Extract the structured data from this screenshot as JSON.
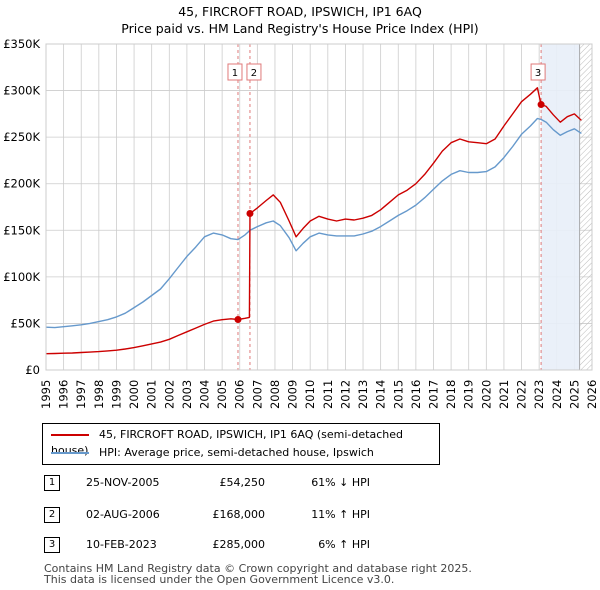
{
  "title_line1": "45, FIRCROFT ROAD, IPSWICH, IP1 6AQ",
  "title_line2": "Price paid vs. HM Land Registry's House Price Index (HPI)",
  "colors": {
    "red": "#cc0000",
    "blue": "#6699cc",
    "shade": "#e8eef8",
    "grid": "#cccccc",
    "vline": "#e07a7a"
  },
  "legend": {
    "red_label": "45, FIRCROFT ROAD, IPSWICH, IP1 6AQ (semi-detached house)",
    "blue_label": "HPI: Average price, semi-detached house, Ipswich"
  },
  "transactions": [
    {
      "num": "1",
      "date": "25-NOV-2005",
      "price": "£54,250",
      "hpi": "61% ↓ HPI"
    },
    {
      "num": "2",
      "date": "02-AUG-2006",
      "price": "£168,000",
      "hpi": "11% ↑ HPI"
    },
    {
      "num": "3",
      "date": "10-FEB-2023",
      "price": "£285,000",
      "hpi": "6% ↑ HPI"
    }
  ],
  "footer_line1": "Contains HM Land Registry data © Crown copyright and database right 2025.",
  "footer_line2": "This data is licensed under the Open Government Licence v3.0.",
  "chart_data": {
    "type": "line",
    "title": "Price paid vs. HM Land Registry's House Price Index (HPI)",
    "xlim": [
      1995,
      2026
    ],
    "ylim": [
      0,
      350000
    ],
    "x_ticks": [
      1995,
      1996,
      1997,
      1998,
      1999,
      2000,
      2001,
      2002,
      2003,
      2004,
      2005,
      2006,
      2007,
      2008,
      2009,
      2010,
      2011,
      2012,
      2013,
      2014,
      2015,
      2016,
      2017,
      2018,
      2019,
      2020,
      2021,
      2022,
      2023,
      2024,
      2025,
      2026
    ],
    "y_ticks": [
      {
        "value": 0,
        "label": "£0"
      },
      {
        "value": 50000,
        "label": "£50K"
      },
      {
        "value": 100000,
        "label": "£100K"
      },
      {
        "value": 150000,
        "label": "£150K"
      },
      {
        "value": 200000,
        "label": "£200K"
      },
      {
        "value": 250000,
        "label": "£250K"
      },
      {
        "value": 300000,
        "label": "£300K"
      },
      {
        "value": 350000,
        "label": "£350K"
      }
    ],
    "grid": true,
    "future_shade_from": 2025.0,
    "hatch_from": 2025.3,
    "markers": [
      {
        "label": "1",
        "x": 2005.9,
        "y": 54250
      },
      {
        "label": "2",
        "x": 2006.58,
        "y": 168000
      },
      {
        "label": "3",
        "x": 2023.11,
        "y": 285000
      }
    ],
    "series": [
      {
        "name": "45, FIRCROFT ROAD, IPSWICH, IP1 6AQ (semi-detached house)",
        "color": "#cc0000",
        "points": [
          [
            1995.0,
            17500
          ],
          [
            1995.5,
            17700
          ],
          [
            1996.0,
            18000
          ],
          [
            1996.5,
            18300
          ],
          [
            1997.0,
            18800
          ],
          [
            1997.5,
            19200
          ],
          [
            1998.0,
            19800
          ],
          [
            1998.5,
            20500
          ],
          [
            1999.0,
            21300
          ],
          [
            1999.5,
            22500
          ],
          [
            2000.0,
            24000
          ],
          [
            2000.5,
            26000
          ],
          [
            2001.0,
            28000
          ],
          [
            2001.5,
            30000
          ],
          [
            2002.0,
            33000
          ],
          [
            2002.5,
            37000
          ],
          [
            2003.0,
            41000
          ],
          [
            2003.5,
            45000
          ],
          [
            2004.0,
            49000
          ],
          [
            2004.5,
            52500
          ],
          [
            2005.0,
            54000
          ],
          [
            2005.5,
            55000
          ],
          [
            2005.9,
            54250
          ],
          [
            2006.3,
            55500
          ],
          [
            2006.55,
            56500
          ],
          [
            2006.58,
            168000
          ],
          [
            2007.0,
            174000
          ],
          [
            2007.5,
            182000
          ],
          [
            2007.9,
            188000
          ],
          [
            2008.3,
            180000
          ],
          [
            2008.8,
            160000
          ],
          [
            2009.2,
            143000
          ],
          [
            2009.6,
            152000
          ],
          [
            2010.0,
            160000
          ],
          [
            2010.5,
            165000
          ],
          [
            2011.0,
            162000
          ],
          [
            2011.5,
            160000
          ],
          [
            2012.0,
            162000
          ],
          [
            2012.5,
            161000
          ],
          [
            2013.0,
            163000
          ],
          [
            2013.5,
            166000
          ],
          [
            2014.0,
            172000
          ],
          [
            2014.5,
            180000
          ],
          [
            2015.0,
            188000
          ],
          [
            2015.5,
            193000
          ],
          [
            2016.0,
            200000
          ],
          [
            2016.5,
            210000
          ],
          [
            2017.0,
            222000
          ],
          [
            2017.5,
            235000
          ],
          [
            2018.0,
            244000
          ],
          [
            2018.5,
            248000
          ],
          [
            2019.0,
            245000
          ],
          [
            2019.5,
            244000
          ],
          [
            2020.0,
            243000
          ],
          [
            2020.5,
            248000
          ],
          [
            2021.0,
            262000
          ],
          [
            2021.5,
            275000
          ],
          [
            2022.0,
            288000
          ],
          [
            2022.5,
            296000
          ],
          [
            2022.9,
            303000
          ],
          [
            2023.11,
            285000
          ],
          [
            2023.4,
            283000
          ],
          [
            2023.8,
            274000
          ],
          [
            2024.2,
            266000
          ],
          [
            2024.6,
            272000
          ],
          [
            2025.0,
            275000
          ],
          [
            2025.4,
            268000
          ]
        ]
      },
      {
        "name": "HPI: Average price, semi-detached house, Ipswich",
        "color": "#6699cc",
        "points": [
          [
            1995.0,
            46000
          ],
          [
            1995.5,
            45500
          ],
          [
            1996.0,
            46500
          ],
          [
            1996.5,
            47500
          ],
          [
            1997.0,
            48500
          ],
          [
            1997.5,
            50000
          ],
          [
            1998.0,
            52000
          ],
          [
            1998.5,
            54000
          ],
          [
            1999.0,
            57000
          ],
          [
            1999.5,
            61000
          ],
          [
            2000.0,
            67000
          ],
          [
            2000.5,
            73000
          ],
          [
            2001.0,
            80000
          ],
          [
            2001.5,
            87000
          ],
          [
            2002.0,
            98000
          ],
          [
            2002.5,
            110000
          ],
          [
            2003.0,
            122000
          ],
          [
            2003.5,
            132000
          ],
          [
            2004.0,
            143000
          ],
          [
            2004.5,
            147000
          ],
          [
            2005.0,
            145000
          ],
          [
            2005.5,
            141000
          ],
          [
            2005.9,
            140000
          ],
          [
            2006.3,
            145000
          ],
          [
            2006.58,
            150000
          ],
          [
            2007.0,
            154000
          ],
          [
            2007.5,
            158000
          ],
          [
            2007.9,
            160000
          ],
          [
            2008.3,
            155000
          ],
          [
            2008.8,
            142000
          ],
          [
            2009.2,
            128000
          ],
          [
            2009.6,
            136000
          ],
          [
            2010.0,
            143000
          ],
          [
            2010.5,
            147000
          ],
          [
            2011.0,
            145000
          ],
          [
            2011.5,
            144000
          ],
          [
            2012.0,
            144000
          ],
          [
            2012.5,
            144000
          ],
          [
            2013.0,
            146000
          ],
          [
            2013.5,
            149000
          ],
          [
            2014.0,
            154000
          ],
          [
            2014.5,
            160000
          ],
          [
            2015.0,
            166000
          ],
          [
            2015.5,
            171000
          ],
          [
            2016.0,
            177000
          ],
          [
            2016.5,
            185000
          ],
          [
            2017.0,
            194000
          ],
          [
            2017.5,
            203000
          ],
          [
            2018.0,
            210000
          ],
          [
            2018.5,
            214000
          ],
          [
            2019.0,
            212000
          ],
          [
            2019.5,
            212000
          ],
          [
            2020.0,
            213000
          ],
          [
            2020.5,
            218000
          ],
          [
            2021.0,
            228000
          ],
          [
            2021.5,
            240000
          ],
          [
            2022.0,
            253000
          ],
          [
            2022.5,
            262000
          ],
          [
            2022.9,
            270000
          ],
          [
            2023.11,
            269000
          ],
          [
            2023.4,
            266000
          ],
          [
            2023.8,
            258000
          ],
          [
            2024.2,
            252000
          ],
          [
            2024.6,
            256000
          ],
          [
            2025.0,
            259000
          ],
          [
            2025.4,
            254000
          ]
        ]
      }
    ]
  }
}
